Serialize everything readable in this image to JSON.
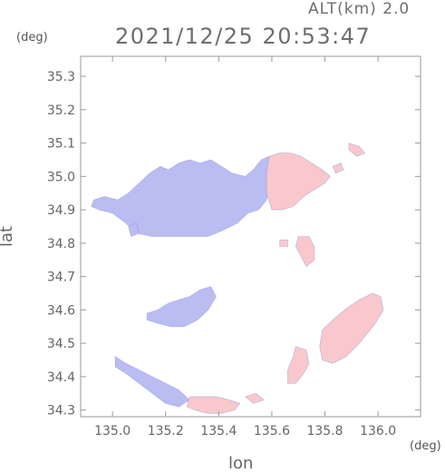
{
  "header": {
    "altitude_label": "ALT(km) 2.0",
    "timestamp": "2021/12/25 20:53:47"
  },
  "axes": {
    "x_unit": "(deg)",
    "y_unit": "(deg)",
    "x_title": "lon",
    "y_title": "lat"
  },
  "chart_data": {
    "type": "heatmap",
    "x_ticks": [
      135.0,
      135.2,
      135.4,
      135.6,
      135.8,
      136.0
    ],
    "y_ticks": [
      34.3,
      34.4,
      34.5,
      34.6,
      34.7,
      34.8,
      34.9,
      35.0,
      35.1,
      35.2,
      35.3
    ],
    "xlim": [
      134.88,
      136.16
    ],
    "ylim": [
      34.28,
      35.36
    ],
    "grid": false,
    "colors": {
      "negative": "#b9bdf2",
      "negative_strong": "#a9aeee",
      "positive": "#f8c8cc",
      "positive_strong": "#f5b4ba",
      "edge": "#8a8ad8"
    },
    "regions": [
      {
        "sign": "negative",
        "points": [
          [
            134.93,
            34.93
          ],
          [
            134.97,
            34.94
          ],
          [
            135.02,
            34.93
          ],
          [
            135.06,
            34.95
          ],
          [
            135.1,
            34.98
          ],
          [
            135.14,
            35.01
          ],
          [
            135.18,
            35.03
          ],
          [
            135.21,
            35.02
          ],
          [
            135.25,
            35.04
          ],
          [
            135.29,
            35.05
          ],
          [
            135.33,
            35.04
          ],
          [
            135.37,
            35.05
          ],
          [
            135.41,
            35.03
          ],
          [
            135.45,
            35.01
          ],
          [
            135.5,
            35.0
          ],
          [
            135.53,
            35.02
          ],
          [
            135.56,
            35.05
          ],
          [
            135.59,
            35.06
          ],
          [
            135.6,
            35.0
          ],
          [
            135.58,
            34.93
          ],
          [
            135.55,
            34.9
          ],
          [
            135.51,
            34.89
          ],
          [
            135.47,
            34.86
          ],
          [
            135.42,
            34.84
          ],
          [
            135.36,
            34.82
          ],
          [
            135.3,
            34.82
          ],
          [
            135.22,
            34.82
          ],
          [
            135.15,
            34.82
          ],
          [
            135.09,
            34.83
          ],
          [
            135.05,
            34.86
          ],
          [
            135.0,
            34.89
          ],
          [
            134.95,
            34.9
          ],
          [
            134.92,
            34.91
          ]
        ]
      },
      {
        "sign": "negative",
        "points": [
          [
            135.06,
            34.85
          ],
          [
            135.09,
            34.86
          ],
          [
            135.1,
            34.83
          ],
          [
            135.07,
            34.82
          ]
        ]
      },
      {
        "sign": "positive",
        "points": [
          [
            135.59,
            35.06
          ],
          [
            135.63,
            35.07
          ],
          [
            135.67,
            35.07
          ],
          [
            135.71,
            35.06
          ],
          [
            135.75,
            35.04
          ],
          [
            135.79,
            35.02
          ],
          [
            135.82,
            35.0
          ],
          [
            135.8,
            34.98
          ],
          [
            135.76,
            34.96
          ],
          [
            135.72,
            34.94
          ],
          [
            135.68,
            34.91
          ],
          [
            135.64,
            34.9
          ],
          [
            135.6,
            34.9
          ],
          [
            135.58,
            34.95
          ],
          [
            135.58,
            35.01
          ]
        ]
      },
      {
        "sign": "positive",
        "points": [
          [
            135.89,
            35.1
          ],
          [
            135.93,
            35.09
          ],
          [
            135.95,
            35.07
          ],
          [
            135.92,
            35.06
          ],
          [
            135.89,
            35.08
          ]
        ]
      },
      {
        "sign": "positive",
        "points": [
          [
            135.83,
            35.03
          ],
          [
            135.86,
            35.04
          ],
          [
            135.87,
            35.02
          ],
          [
            135.84,
            35.01
          ]
        ]
      },
      {
        "sign": "positive",
        "points": [
          [
            135.7,
            34.82
          ],
          [
            135.74,
            34.82
          ],
          [
            135.76,
            34.79
          ],
          [
            135.76,
            34.75
          ],
          [
            135.73,
            34.73
          ],
          [
            135.71,
            34.76
          ],
          [
            135.69,
            34.79
          ]
        ]
      },
      {
        "sign": "positive",
        "points": [
          [
            135.63,
            34.81
          ],
          [
            135.66,
            34.81
          ],
          [
            135.66,
            34.79
          ],
          [
            135.63,
            34.79
          ]
        ]
      },
      {
        "sign": "negative",
        "points": [
          [
            135.13,
            34.59
          ],
          [
            135.17,
            34.6
          ],
          [
            135.21,
            34.62
          ],
          [
            135.25,
            34.63
          ],
          [
            135.29,
            34.64
          ],
          [
            135.33,
            34.66
          ],
          [
            135.37,
            34.67
          ],
          [
            135.39,
            34.64
          ],
          [
            135.36,
            34.6
          ],
          [
            135.32,
            34.57
          ],
          [
            135.27,
            34.55
          ],
          [
            135.22,
            34.55
          ],
          [
            135.17,
            34.56
          ],
          [
            135.13,
            34.57
          ]
        ]
      },
      {
        "sign": "positive",
        "points": [
          [
            135.79,
            34.54
          ],
          [
            135.83,
            34.57
          ],
          [
            135.86,
            34.59
          ],
          [
            135.89,
            34.61
          ],
          [
            135.93,
            34.63
          ],
          [
            135.98,
            34.65
          ],
          [
            136.01,
            34.64
          ],
          [
            136.02,
            34.6
          ],
          [
            135.99,
            34.56
          ],
          [
            135.96,
            34.53
          ],
          [
            135.93,
            34.5
          ],
          [
            135.88,
            34.46
          ],
          [
            135.83,
            34.44
          ],
          [
            135.79,
            34.45
          ],
          [
            135.78,
            34.49
          ]
        ]
      },
      {
        "sign": "positive",
        "points": [
          [
            135.69,
            34.49
          ],
          [
            135.73,
            34.48
          ],
          [
            135.74,
            34.44
          ],
          [
            135.72,
            34.41
          ],
          [
            135.69,
            34.38
          ],
          [
            135.66,
            34.38
          ],
          [
            135.66,
            34.42
          ],
          [
            135.68,
            34.46
          ]
        ]
      },
      {
        "sign": "negative",
        "points": [
          [
            135.01,
            34.46
          ],
          [
            135.05,
            34.44
          ],
          [
            135.1,
            34.42
          ],
          [
            135.15,
            34.4
          ],
          [
            135.2,
            34.38
          ],
          [
            135.25,
            34.36
          ],
          [
            135.29,
            34.33
          ],
          [
            135.25,
            34.31
          ],
          [
            135.2,
            34.32
          ],
          [
            135.15,
            34.35
          ],
          [
            135.1,
            34.38
          ],
          [
            135.05,
            34.41
          ],
          [
            135.01,
            34.43
          ]
        ]
      },
      {
        "sign": "positive",
        "points": [
          [
            135.29,
            34.34
          ],
          [
            135.34,
            34.34
          ],
          [
            135.39,
            34.34
          ],
          [
            135.44,
            34.33
          ],
          [
            135.48,
            34.32
          ],
          [
            135.46,
            34.3
          ],
          [
            135.41,
            34.29
          ],
          [
            135.36,
            34.29
          ],
          [
            135.31,
            34.3
          ],
          [
            135.28,
            34.31
          ]
        ]
      },
      {
        "sign": "positive",
        "points": [
          [
            135.5,
            34.34
          ],
          [
            135.54,
            34.35
          ],
          [
            135.57,
            34.33
          ],
          [
            135.53,
            34.32
          ]
        ]
      }
    ]
  }
}
